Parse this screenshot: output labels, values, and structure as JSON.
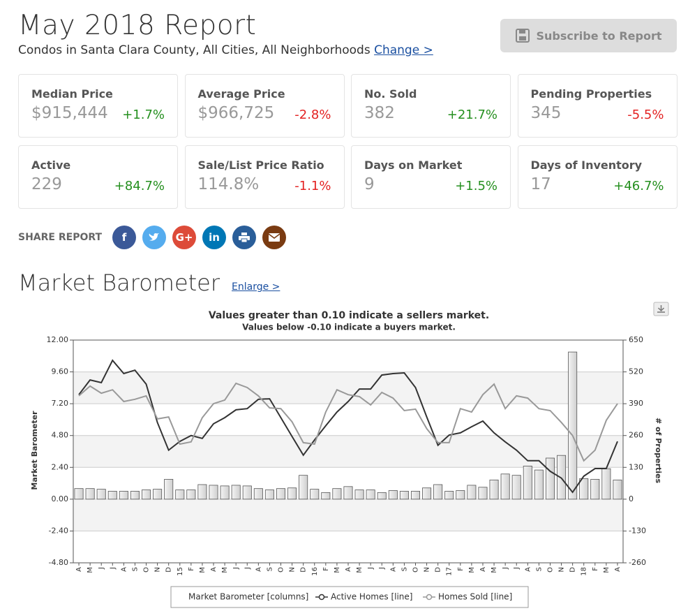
{
  "header": {
    "title": "May 2018 Report",
    "subtitle": "Condos in Santa Clara County, All Cities, All Neighborhoods",
    "change_link": "Change >",
    "subscribe_button": "Subscribe to Report"
  },
  "stats": [
    {
      "label": "Median Price",
      "value": "$915,444",
      "change": "+1.7%"
    },
    {
      "label": "Average Price",
      "value": "$966,725",
      "change": "-2.8%"
    },
    {
      "label": "No. Sold",
      "value": "382",
      "change": "+21.7%"
    },
    {
      "label": "Pending Properties",
      "value": "345",
      "change": "-5.5%"
    },
    {
      "label": "Active",
      "value": "229",
      "change": "+84.7%"
    },
    {
      "label": "Sale/List Price Ratio",
      "value": "114.8%",
      "change": "-1.1%"
    },
    {
      "label": "Days on Market",
      "value": "9",
      "change": "+1.5%"
    },
    {
      "label": "Days of Inventory",
      "value": "17",
      "change": "+46.7%"
    }
  ],
  "share": {
    "label": "SHARE REPORT",
    "icons": [
      "f",
      "G+",
      "in"
    ]
  },
  "barometer": {
    "heading": "Market Barometer",
    "enlarge_link": "Enlarge >"
  },
  "chart_data": {
    "type": "combo",
    "title": "Values greater than 0.10 indicate a sellers market.",
    "subtitle": "Values below -0.10 indicate a buyers market.",
    "ylabel": "Market Barometer",
    "y2label": "# of Properties",
    "categories": [
      "A",
      "M",
      "J",
      "J",
      "A",
      "S",
      "O",
      "N",
      "D",
      "15",
      "F",
      "M",
      "A",
      "M",
      "J",
      "J",
      "A",
      "S",
      "O",
      "N",
      "D",
      "16",
      "F",
      "M",
      "A",
      "M",
      "J",
      "J",
      "A",
      "S",
      "O",
      "N",
      "D",
      "17",
      "F",
      "M",
      "A",
      "M",
      "J",
      "J",
      "A",
      "S",
      "O",
      "N",
      "D",
      "18",
      "F",
      "M",
      "A"
    ],
    "series": [
      {
        "name": "Market Barometer [columns]",
        "type": "bar",
        "color": "#cfcfcf",
        "values": [
          0.8,
          0.8,
          0.75,
          0.6,
          0.6,
          0.6,
          0.7,
          0.75,
          1.5,
          0.7,
          0.7,
          1.1,
          1.05,
          1.0,
          1.05,
          1.0,
          0.8,
          0.7,
          0.8,
          0.85,
          1.8,
          0.75,
          0.5,
          0.8,
          0.95,
          0.7,
          0.7,
          0.5,
          0.65,
          0.6,
          0.6,
          0.85,
          1.1,
          0.6,
          0.65,
          1.05,
          0.9,
          1.45,
          1.9,
          1.8,
          2.5,
          2.2,
          3.1,
          3.3,
          11.1,
          1.55,
          1.5,
          2.3,
          1.45
        ]
      },
      {
        "name": "Active Homes [line]",
        "type": "line",
        "axis": "y2",
        "color": "#333333",
        "values": [
          427,
          487,
          476,
          567,
          513,
          527,
          470,
          313,
          200,
          236,
          260,
          248,
          308,
          333,
          365,
          370,
          408,
          410,
          333,
          256,
          180,
          242,
          300,
          356,
          399,
          450,
          450,
          507,
          513,
          516,
          456,
          336,
          220,
          262,
          271,
          296,
          319,
          271,
          234,
          200,
          157,
          157,
          114,
          86,
          28,
          94,
          125,
          125,
          236
        ]
      },
      {
        "name": "Homes Sold [line]",
        "type": "line",
        "axis": "y2",
        "color": "#999999",
        "values": [
          422,
          462,
          433,
          447,
          399,
          408,
          422,
          328,
          336,
          225,
          234,
          333,
          390,
          405,
          473,
          456,
          422,
          373,
          370,
          316,
          231,
          225,
          356,
          447,
          427,
          419,
          385,
          436,
          413,
          362,
          368,
          288,
          231,
          231,
          370,
          356,
          427,
          470,
          370,
          422,
          413,
          370,
          362,
          313,
          260,
          157,
          200,
          322,
          390
        ]
      }
    ],
    "ylim": [
      -4.8,
      12
    ],
    "yticks": [
      {
        "value": 12,
        "label": "12.00"
      },
      {
        "value": 9.6,
        "label": "9.60"
      },
      {
        "value": 7.2,
        "label": "7.20"
      },
      {
        "value": 4.8,
        "label": "4.80"
      },
      {
        "value": 2.4,
        "label": "2.40"
      },
      {
        "value": 0,
        "label": "0.00"
      },
      {
        "value": -2.4,
        "label": "-2.40"
      },
      {
        "value": -4.8,
        "label": "-4.80"
      }
    ],
    "y2lim": [
      -260,
      650
    ],
    "y2ticks": [
      650,
      520,
      390,
      260,
      130,
      0,
      -130,
      -260
    ],
    "grid": true
  }
}
